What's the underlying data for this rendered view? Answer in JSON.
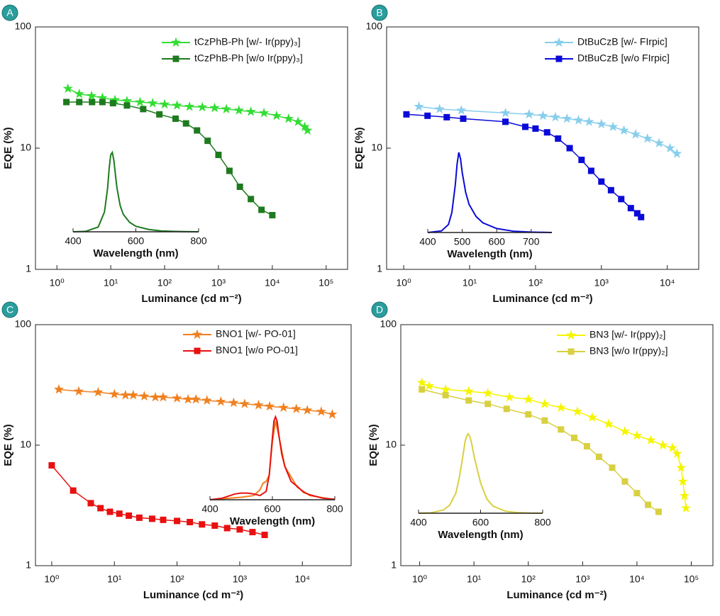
{
  "chart_data": [
    {
      "type": "line",
      "panel_label": "A",
      "xlabel": "Luminance (cd m⁻²)",
      "ylabel": "EQE (%)",
      "xscale": "log",
      "yscale": "log",
      "legend": "upper right",
      "xlim": [
        0.4,
        250000
      ],
      "ylim": [
        1,
        100
      ],
      "xticks": [
        {
          "value": 1,
          "label": "10⁰"
        },
        {
          "value": 10,
          "label": "10¹"
        },
        {
          "value": 100,
          "label": "10²"
        },
        {
          "value": 1000,
          "label": "10³"
        },
        {
          "value": 10000,
          "label": "10⁴"
        },
        {
          "value": 100000,
          "label": "10⁵"
        }
      ],
      "yticks": [
        1,
        10,
        100
      ],
      "series": [
        {
          "name": "tCzPhB-Ph [w/- Ir(ppy)₃]",
          "color": "#33dd33",
          "marker": "star",
          "x": [
            1.6,
            2.6,
            4.4,
            7,
            12,
            20,
            35,
            60,
            100,
            170,
            290,
            500,
            850,
            1400,
            2400,
            4000,
            7000,
            12000,
            20000,
            30000,
            40000,
            45000
          ],
          "values": [
            31,
            28,
            27,
            26,
            25,
            24.5,
            24,
            23.5,
            23,
            22.5,
            22,
            21.8,
            21.5,
            21,
            20.5,
            20,
            19.5,
            18.5,
            17.5,
            16.5,
            15,
            14
          ]
        },
        {
          "name": "tCzPhB-Ph [w/o Ir(ppy)₃]",
          "color": "#1e7a1e",
          "marker": "square",
          "x": [
            1.5,
            2.6,
            4.5,
            7,
            11,
            20,
            40,
            80,
            160,
            250,
            400,
            630,
            1000,
            1600,
            2500,
            4000,
            6300,
            10000
          ],
          "values": [
            24,
            24,
            24,
            24,
            23.5,
            22.5,
            21,
            19,
            17.5,
            16,
            14,
            11.5,
            8.8,
            6.5,
            4.8,
            3.8,
            3.1,
            2.8
          ]
        }
      ],
      "inset": {
        "type": "line",
        "xlabel": "Wavelength (nm)",
        "xlim": [
          400,
          800
        ],
        "ylim": [
          0,
          1
        ],
        "xticks": [
          400,
          600,
          800
        ],
        "series": [
          {
            "color": "#1e7a1e",
            "x": [
              400,
              440,
              480,
              500,
              510,
              515,
              520,
              525,
              530,
              535,
              540,
              550,
              560,
              580,
              600,
              640,
              680,
              720,
              760,
              800
            ],
            "values": [
              0,
              0.005,
              0.06,
              0.25,
              0.55,
              0.8,
              0.97,
              1,
              0.9,
              0.72,
              0.55,
              0.33,
              0.22,
              0.12,
              0.07,
              0.03,
              0.012,
              0.005,
              0.002,
              0
            ]
          }
        ]
      }
    },
    {
      "type": "line",
      "panel_label": "B",
      "xlabel": "Luminance (cd m⁻²)",
      "ylabel": "EQE (%)",
      "xscale": "log",
      "yscale": "log",
      "legend": "upper right",
      "xlim": [
        0.55,
        30000
      ],
      "ylim": [
        1,
        100
      ],
      "xticks": [
        {
          "value": 1,
          "label": "10⁰"
        },
        {
          "value": 10,
          "label": "10¹"
        },
        {
          "value": 100,
          "label": "10²"
        },
        {
          "value": 1000,
          "label": "10³"
        },
        {
          "value": 10000,
          "label": "10⁴"
        }
      ],
      "yticks": [
        1,
        10,
        100
      ],
      "series": [
        {
          "name": "DtBuCzB [w/- FIrpic]",
          "color": "#87ceeb",
          "marker": "star",
          "x": [
            1.7,
            3.5,
            7.5,
            35,
            80,
            130,
            200,
            300,
            450,
            650,
            1000,
            1500,
            2200,
            3300,
            5000,
            7500,
            11000,
            14000
          ],
          "values": [
            22,
            21,
            20.5,
            19.5,
            19,
            18.5,
            18,
            17.5,
            17,
            16.5,
            15.8,
            15,
            14,
            13,
            12,
            11,
            10,
            9
          ]
        },
        {
          "name": "DtBuCzB [w/o FIrpic]",
          "color": "#0a0ad8",
          "marker": "square",
          "x": [
            1.1,
            2.3,
            4.5,
            8,
            35,
            70,
            100,
            150,
            220,
            330,
            500,
            700,
            1000,
            1400,
            2000,
            2800,
            3500,
            4000
          ],
          "values": [
            19,
            18.5,
            18,
            17.5,
            16.5,
            15,
            14.5,
            13.5,
            12,
            10,
            8,
            6.5,
            5.3,
            4.5,
            3.8,
            3.2,
            2.9,
            2.7
          ]
        }
      ],
      "inset": {
        "type": "line",
        "xlabel": "Wavelength (nm)",
        "xlim": [
          400,
          760
        ],
        "ylim": [
          0,
          1
        ],
        "xticks": [
          400,
          500,
          600,
          700
        ],
        "series": [
          {
            "color": "#0a0ad8",
            "x": [
              400,
              440,
              460,
              470,
              480,
              485,
              490,
              495,
              500,
              510,
              520,
              540,
              560,
              600,
              650,
              700,
              760
            ],
            "values": [
              0,
              0.02,
              0.1,
              0.25,
              0.6,
              0.85,
              1,
              0.92,
              0.75,
              0.5,
              0.35,
              0.2,
              0.12,
              0.05,
              0.015,
              0.005,
              0
            ]
          }
        ]
      }
    },
    {
      "type": "line",
      "panel_label": "C",
      "xlabel": "Luminance (cd m⁻²)",
      "ylabel": "EQE (%)",
      "xscale": "log",
      "yscale": "log",
      "legend": "upper right",
      "xlim": [
        0.55,
        60000
      ],
      "ylim": [
        1,
        100
      ],
      "xticks": [
        {
          "value": 1,
          "label": "10⁰"
        },
        {
          "value": 10,
          "label": "10¹"
        },
        {
          "value": 100,
          "label": "10²"
        },
        {
          "value": 1000,
          "label": "10³"
        },
        {
          "value": 10000,
          "label": "10⁴"
        }
      ],
      "yticks": [
        1,
        10,
        100
      ],
      "series": [
        {
          "name": "BNO1 [w/- PO-01]",
          "color": "#f08020",
          "marker": "star",
          "x": [
            1.3,
            2.7,
            5.5,
            10,
            15,
            20,
            30,
            45,
            60,
            100,
            150,
            200,
            300,
            500,
            800,
            1200,
            2000,
            3000,
            5000,
            8000,
            12000,
            20000,
            30000
          ],
          "values": [
            29,
            28,
            27.5,
            26.5,
            26,
            26,
            25.5,
            25,
            25,
            24.5,
            24,
            24,
            23.5,
            23,
            22.5,
            22,
            21.5,
            21,
            20.5,
            20,
            19.5,
            19,
            18
          ]
        },
        {
          "name": "BNO1 [w/o PO-01]",
          "color": "#e81010",
          "marker": "square",
          "x": [
            1,
            2.2,
            4.2,
            6,
            8.5,
            12,
            17,
            25,
            40,
            60,
            100,
            160,
            250,
            400,
            630,
            1000,
            1600,
            2500
          ],
          "values": [
            6.8,
            4.2,
            3.3,
            3.0,
            2.8,
            2.7,
            2.6,
            2.5,
            2.45,
            2.4,
            2.35,
            2.3,
            2.2,
            2.15,
            2.05,
            2.0,
            1.9,
            1.8
          ]
        }
      ],
      "inset": {
        "type": "line",
        "xlabel": "Wavelength (nm)",
        "xlim": [
          400,
          800
        ],
        "ylim": [
          0,
          1
        ],
        "xticks": [
          400,
          600,
          800
        ],
        "series": [
          {
            "color": "#f08020",
            "x": [
              400,
              500,
              540,
              560,
              570,
              580,
              590,
              600,
              610,
              620,
              640,
              680,
              720,
              800
            ],
            "values": [
              0,
              0.03,
              0.05,
              0.12,
              0.2,
              0.22,
              0.3,
              0.7,
              0.95,
              0.78,
              0.4,
              0.15,
              0.05,
              0
            ]
          },
          {
            "color": "#e81010",
            "x": [
              400,
              440,
              480,
              500,
              520,
              540,
              560,
              580,
              590,
              600,
              605,
              610,
              615,
              620,
              630,
              640,
              660,
              680,
              700,
              720,
              760,
              800
            ],
            "values": [
              0,
              0.02,
              0.07,
              0.08,
              0.08,
              0.07,
              0.05,
              0.1,
              0.3,
              0.75,
              0.95,
              1,
              0.95,
              0.8,
              0.55,
              0.4,
              0.22,
              0.16,
              0.09,
              0.06,
              0.02,
              0.005
            ]
          }
        ]
      }
    },
    {
      "type": "line",
      "panel_label": "D",
      "xlabel": "Luminance (cd m⁻²)",
      "ylabel": "EQE (%)",
      "xscale": "log",
      "yscale": "log",
      "legend": "upper right",
      "xlim": [
        0.45,
        250000
      ],
      "ylim": [
        1,
        100
      ],
      "xticks": [
        {
          "value": 1,
          "label": "10⁰"
        },
        {
          "value": 10,
          "label": "10¹"
        },
        {
          "value": 100,
          "label": "10²"
        },
        {
          "value": 1000,
          "label": "10³"
        },
        {
          "value": 10000,
          "label": "10⁴"
        },
        {
          "value": 100000,
          "label": "10⁵"
        }
      ],
      "yticks": [
        1,
        10,
        100
      ],
      "series": [
        {
          "name": "BN3 [w/- Ir(ppy)₂]",
          "color": "#f5f500",
          "marker": "star",
          "x": [
            1.1,
            1.5,
            3,
            8,
            18,
            45,
            100,
            200,
            400,
            800,
            1500,
            3000,
            6000,
            10000,
            18000,
            30000,
            45000,
            55000,
            65000,
            70000,
            75000,
            80000
          ],
          "values": [
            33,
            31,
            29,
            28,
            27,
            25,
            24,
            22,
            20.5,
            19,
            17,
            15,
            13,
            12,
            11,
            10,
            9.5,
            8.5,
            6.5,
            5,
            3.8,
            3.0
          ]
        },
        {
          "name": "BN3 [w/o Ir(ppy)₂]",
          "color": "#d8d040",
          "marker": "square",
          "x": [
            1.1,
            3,
            8,
            18,
            40,
            100,
            200,
            400,
            700,
            1200,
            2000,
            3500,
            6000,
            10000,
            16000,
            25000
          ],
          "values": [
            29,
            26,
            23.5,
            22,
            20,
            18,
            16,
            13.5,
            11.5,
            9.8,
            8,
            6.5,
            5,
            4,
            3.2,
            2.8
          ]
        }
      ],
      "inset": {
        "type": "line",
        "xlabel": "Wavelength (nm)",
        "xlim": [
          400,
          800
        ],
        "ylim": [
          0,
          1
        ],
        "xticks": [
          400,
          600,
          800
        ],
        "series": [
          {
            "color": "#d8d040",
            "x": [
              400,
              440,
              480,
              500,
              520,
              530,
              540,
              550,
              555,
              560,
              565,
              570,
              580,
              600,
              620,
              640,
              680,
              720,
              760,
              800
            ],
            "values": [
              0,
              0.005,
              0.04,
              0.1,
              0.25,
              0.42,
              0.65,
              0.9,
              0.97,
              1,
              0.97,
              0.9,
              0.7,
              0.38,
              0.18,
              0.09,
              0.025,
              0.008,
              0.002,
              0
            ]
          }
        ]
      }
    }
  ]
}
